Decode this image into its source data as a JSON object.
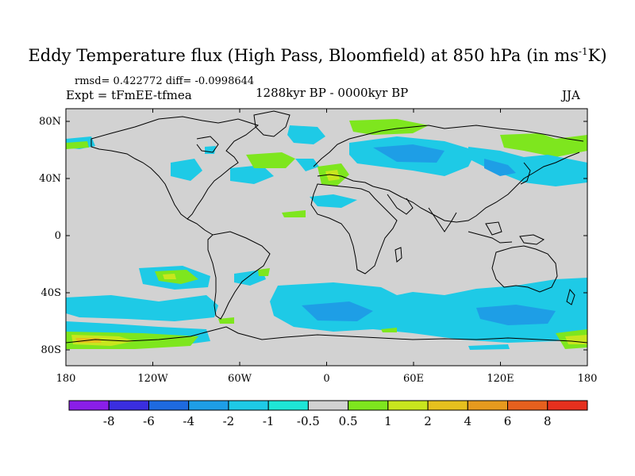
{
  "title": {
    "main": "Eddy Temperature flux (High Pass, Bloomfield) at 850 hPa (in ms",
    "superscript": "-1",
    "suffix": "K)"
  },
  "stats_line": "rmsd= 0.422772 diff= -0.0998644",
  "experiment": "Expt = tFmEE-tfmea",
  "period": "1288kyr BP - 0000kyr BP",
  "season": "JJA",
  "lat_ticks": [
    "80N",
    "40N",
    "0",
    "40S",
    "80S"
  ],
  "lon_ticks": [
    "180",
    "120W",
    "60W",
    "0",
    "60E",
    "120E",
    "180"
  ],
  "colorbar": {
    "labels": [
      "-8",
      "-6",
      "-4",
      "-2",
      "-1",
      "-0.5",
      "0.5",
      "1",
      "2",
      "4",
      "6",
      "8"
    ],
    "colors": [
      "#8a1ee8",
      "#3a2ee0",
      "#1e6ae0",
      "#1e9ee6",
      "#1ecae6",
      "#1ee6d6",
      "#d2d2d2",
      "#7ee61e",
      "#c8e61e",
      "#e6c01e",
      "#e69a1e",
      "#e6601e",
      "#e6301e"
    ]
  },
  "colors": {
    "land_background": "#d2d2d2",
    "coastline": "#000000"
  }
}
